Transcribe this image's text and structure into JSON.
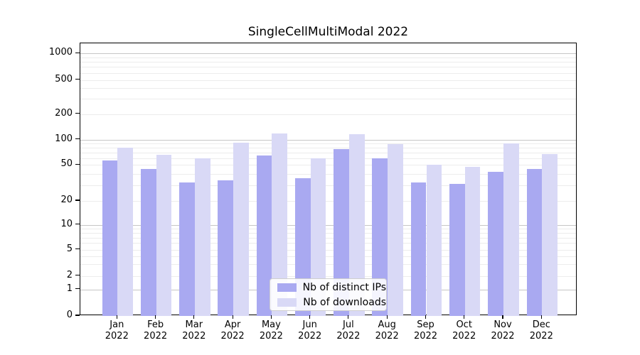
{
  "title": "SingleCellMultiModal 2022",
  "chart_data": {
    "type": "bar",
    "title": "SingleCellMultiModal 2022",
    "categories": [
      "Jan",
      "Feb",
      "Mar",
      "Apr",
      "May",
      "Jun",
      "Jul",
      "Aug",
      "Sep",
      "Oct",
      "Nov",
      "Dec"
    ],
    "year": "2022",
    "series": [
      {
        "name": "Nb of distinct IPs",
        "color": "#a9a9f1",
        "values": [
          57,
          45,
          32,
          34,
          65,
          36,
          77,
          60,
          32,
          31,
          42,
          45
        ]
      },
      {
        "name": "Nb of downloads",
        "color": "#d9d9f6",
        "values": [
          80,
          66,
          60,
          92,
          118,
          60,
          116,
          88,
          50,
          48,
          90,
          67
        ]
      }
    ],
    "xlabel": "",
    "ylabel": "",
    "yscale": "log-like (compressed below 10, linear 0-1)",
    "yticks": [
      0,
      1,
      2,
      5,
      10,
      20,
      50,
      100,
      200,
      500,
      1000
    ],
    "major_gridline_values": [
      1,
      10,
      100,
      1000
    ],
    "minor_gridline_values": [
      2,
      3,
      4,
      5,
      6,
      7,
      8,
      9,
      20,
      30,
      40,
      50,
      60,
      70,
      80,
      90,
      200,
      300,
      400,
      500,
      600,
      700,
      800,
      900
    ],
    "ylim": [
      0,
      1340
    ],
    "grid": "horizontal, major and minor",
    "legend_position": "lower center"
  },
  "colors": {
    "distinct_ips_bar": "#a9a9f1",
    "downloads_bar": "#d9d9f6",
    "major_grid": "#c6c6c6",
    "minor_grid": "#ececec",
    "axis": "#000000",
    "background": "#ffffff"
  }
}
